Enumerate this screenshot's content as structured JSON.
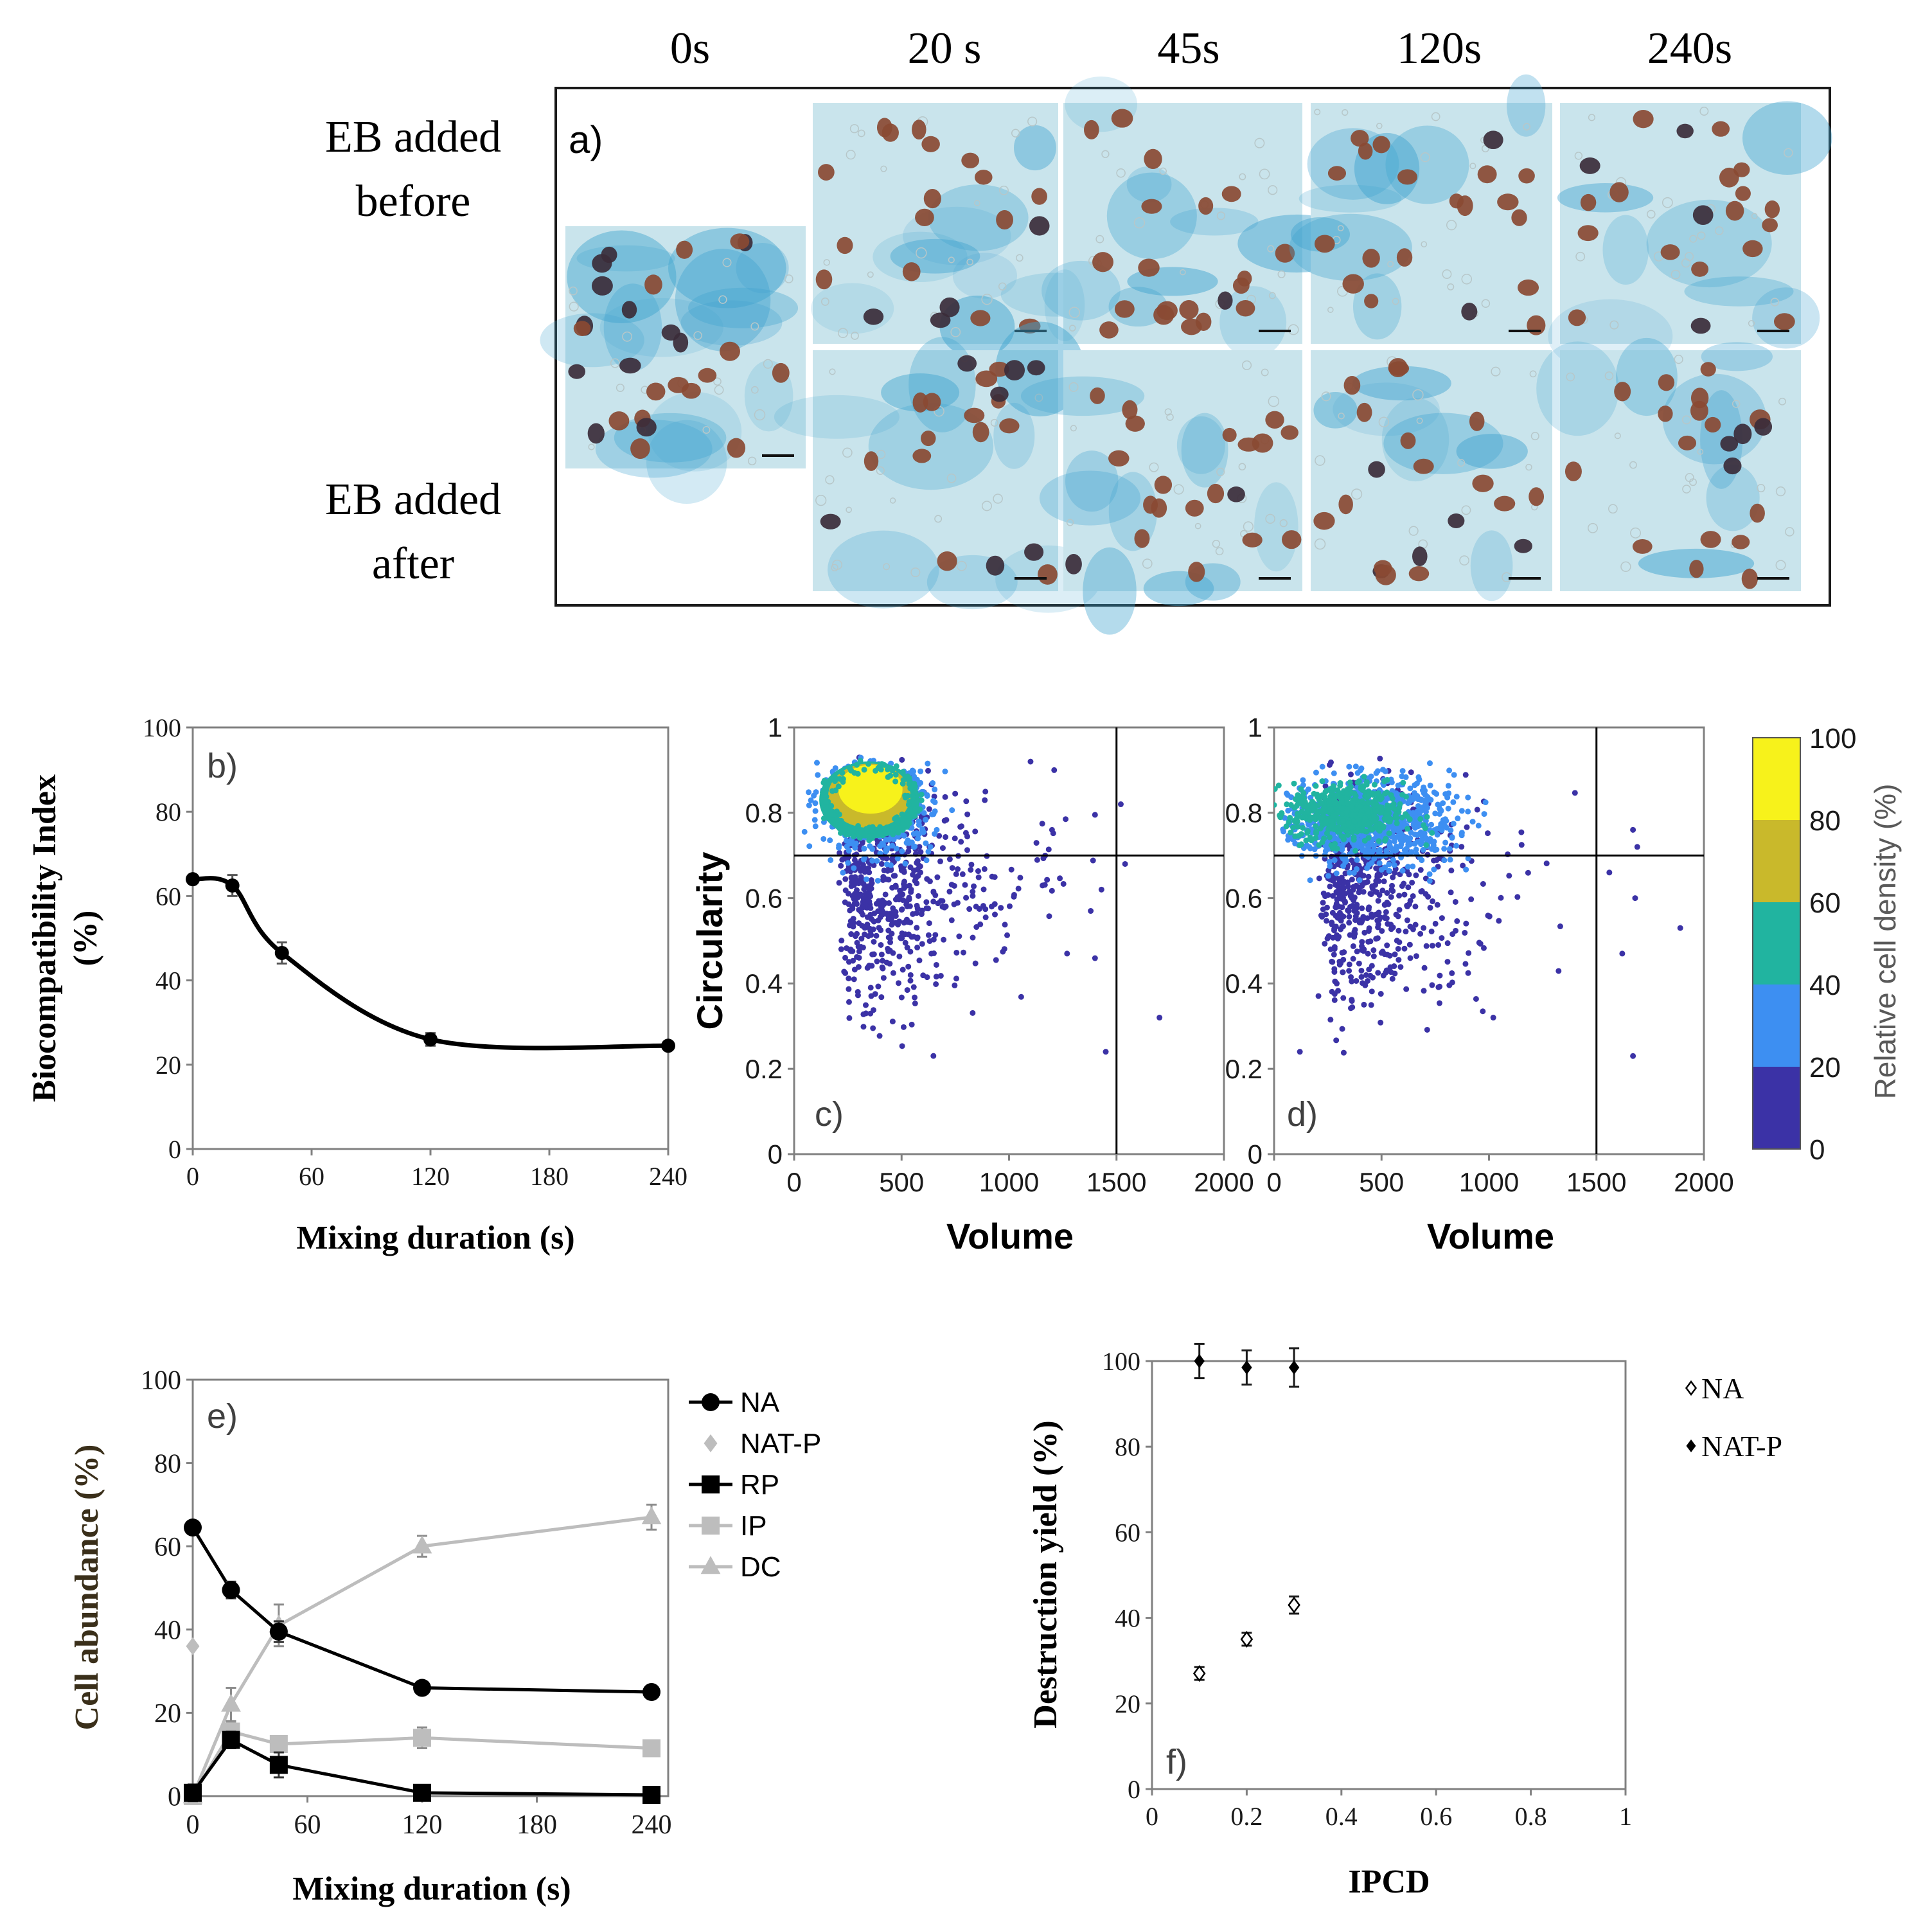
{
  "panel_a": {
    "column_headers": [
      "0s",
      "20 s",
      "45s",
      "120s",
      "240s"
    ],
    "row_labels": [
      [
        "EB added",
        "before"
      ],
      [
        "EB added",
        "after"
      ]
    ],
    "panel_label": "a)"
  },
  "colors": {
    "micrograph_bg": "#c9e4ec",
    "micrograph_blue": "#3fa3cf",
    "cell_brown": "#8a4a33",
    "cell_dark": "#3b2d3a",
    "density_0_20": "#3b32a6",
    "density_20_40": "#3d8ff2",
    "density_40_60": "#21b4a0",
    "density_60_80": "#c9b92b",
    "density_80_100": "#f7f21b",
    "na_series": "#000000",
    "light_series": "#bdbdbd"
  },
  "chart_data": [
    {
      "id": "b",
      "type": "line",
      "panel_label": "b)",
      "xlabel": "Mixing duration  (s)",
      "ylabel": [
        "Biocompatibility Index",
        "(%)"
      ],
      "xlim": [
        0,
        240
      ],
      "ylim": [
        0,
        100
      ],
      "xticks": [
        0,
        60,
        120,
        180,
        240
      ],
      "yticks": [
        0,
        20,
        40,
        60,
        80,
        100
      ],
      "series": [
        {
          "x": [
            0,
            20,
            45,
            120,
            240
          ],
          "y": [
            64,
            62.5,
            46.5,
            26,
            24.5
          ],
          "err": [
            0,
            2.5,
            2.5,
            1.5,
            0
          ],
          "smooth": true
        }
      ],
      "grid": false
    },
    {
      "id": "c",
      "type": "scatter",
      "panel_label": "c)",
      "xlabel": "Volume",
      "ylabel": "Circularity",
      "xlim": [
        0,
        2000
      ],
      "ylim": [
        0,
        1
      ],
      "xticks": [
        0,
        500,
        1000,
        1500,
        2000
      ],
      "yticks": [
        0,
        0.2,
        0.4,
        0.6,
        0.8,
        1
      ],
      "threshold_lines": {
        "x": 1500,
        "y": 0.7
      },
      "density_centers": [
        {
          "x": 350,
          "y": 0.85,
          "level": "80-100"
        },
        {
          "x": 350,
          "y": 0.83,
          "level": "60-80"
        },
        {
          "x": 350,
          "y": 0.82,
          "level": "40-60"
        },
        {
          "x": 400,
          "y": 0.78,
          "level": "20-40"
        },
        {
          "x": 400,
          "y": 0.6,
          "level": "0-20"
        }
      ],
      "outliers": [
        [
          1700,
          0.32
        ],
        [
          1450,
          0.24
        ],
        [
          1520,
          0.82
        ],
        [
          1540,
          0.68
        ],
        [
          1430,
          0.62
        ],
        [
          1210,
          0.9
        ],
        [
          1100,
          0.92
        ],
        [
          1380,
          0.57
        ],
        [
          1270,
          0.47
        ]
      ]
    },
    {
      "id": "d",
      "type": "scatter",
      "panel_label": "d)",
      "xlabel": "Volume",
      "ylabel": "",
      "xlim": [
        0,
        2000
      ],
      "ylim": [
        0,
        1
      ],
      "xticks": [
        0,
        500,
        1000,
        1500,
        2000
      ],
      "yticks": [
        0,
        0.2,
        0.4,
        0.6,
        0.8,
        1
      ],
      "threshold_lines": {
        "x": 1500,
        "y": 0.7
      },
      "density_centers": [
        {
          "x": 350,
          "y": 0.8,
          "level": "40-60"
        },
        {
          "x": 450,
          "y": 0.76,
          "level": "20-40"
        },
        {
          "x": 450,
          "y": 0.58,
          "level": "0-20"
        }
      ],
      "outliers": [
        [
          1670,
          0.23
        ],
        [
          1890,
          0.53
        ],
        [
          1670,
          0.76
        ],
        [
          1680,
          0.6
        ],
        [
          1620,
          0.47
        ],
        [
          1560,
          0.66
        ],
        [
          1020,
          0.32
        ],
        [
          120,
          0.24
        ],
        [
          1690,
          0.72
        ]
      ],
      "colorbar": {
        "label": "Relative cell density (%)",
        "ticks": [
          0,
          20,
          40,
          60,
          80,
          100
        ]
      }
    },
    {
      "id": "e",
      "type": "line",
      "panel_label": "e)",
      "xlabel": "Mixing duration (s)",
      "ylabel": "Cell abundance (%)",
      "xlim": [
        0,
        240
      ],
      "ylim": [
        0,
        100
      ],
      "xticks": [
        0,
        60,
        120,
        180,
        240
      ],
      "yticks": [
        0,
        20,
        40,
        60,
        80,
        100
      ],
      "legend_position": "right",
      "series": [
        {
          "name": "NA",
          "marker": "circle",
          "color": "#000000",
          "line": true,
          "x": [
            0,
            20,
            45,
            120,
            240
          ],
          "y": [
            64.5,
            49.5,
            39.5,
            26,
            25
          ],
          "err": [
            0,
            2,
            2.5,
            0,
            0
          ]
        },
        {
          "name": "NAT-P",
          "marker": "diamond",
          "color": "#bdbdbd",
          "line": false,
          "x": [
            0
          ],
          "y": [
            36
          ],
          "err": [
            0
          ]
        },
        {
          "name": "RP",
          "marker": "square",
          "color": "#000000",
          "line": true,
          "x": [
            0,
            20,
            45,
            120,
            240
          ],
          "y": [
            0.8,
            13.5,
            7.5,
            0.8,
            0.3
          ],
          "err": [
            2,
            2,
            3,
            0,
            0
          ]
        },
        {
          "name": "IP",
          "marker": "square",
          "color": "#bdbdbd",
          "line": true,
          "x": [
            0,
            20,
            45,
            120,
            240
          ],
          "y": [
            0,
            15.5,
            12.5,
            14,
            11.5
          ],
          "err": [
            0,
            2,
            0,
            2.5,
            0
          ]
        },
        {
          "name": "DC",
          "marker": "triangle",
          "color": "#bdbdbd",
          "line": true,
          "x": [
            0,
            20,
            45,
            120,
            240
          ],
          "y": [
            0,
            22,
            41,
            60,
            67
          ],
          "err": [
            0,
            4,
            5,
            2.5,
            3
          ]
        }
      ]
    },
    {
      "id": "f",
      "type": "scatter",
      "panel_label": "f)",
      "xlabel": "IPCD",
      "ylabel": "Destruction yield (%)",
      "xlim": [
        0,
        1
      ],
      "ylim": [
        0,
        100
      ],
      "xticks": [
        0,
        0.2,
        0.4,
        0.6,
        0.8,
        1
      ],
      "yticks": [
        0,
        20,
        40,
        60,
        80,
        100
      ],
      "legend_position": "right",
      "series": [
        {
          "name": "NA",
          "marker": "diamond-open",
          "x": [
            0.1,
            0.2,
            0.3
          ],
          "y": [
            27,
            35,
            43
          ],
          "err": [
            1.5,
            1.5,
            2
          ]
        },
        {
          "name": "NAT-P",
          "marker": "diamond-filled",
          "x": [
            0.1,
            0.2,
            0.3
          ],
          "y": [
            100,
            98.5,
            98.5
          ],
          "err": [
            4,
            4,
            4.5
          ]
        }
      ]
    }
  ]
}
